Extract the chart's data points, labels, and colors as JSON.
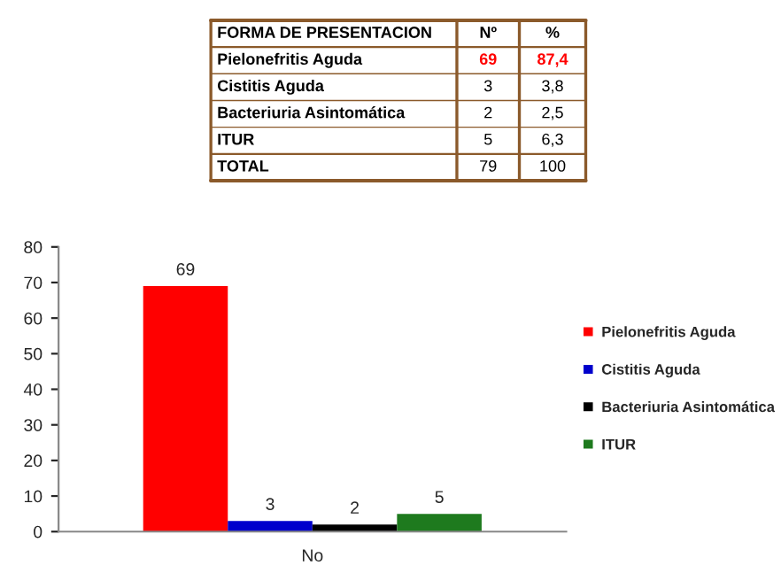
{
  "chart_data": {
    "type": "bar",
    "categories": [
      "No"
    ],
    "series": [
      {
        "name": "Pielonefritis Aguda",
        "color": "#ff0000",
        "values": [
          69
        ]
      },
      {
        "name": "Cistitis Aguda",
        "color": "#0000cc",
        "values": [
          3
        ]
      },
      {
        "name": "Bacteriuria Asintomática",
        "color": "#000000",
        "values": [
          2
        ]
      },
      {
        "name": "ITUR",
        "color": "#1e7a1e",
        "values": [
          5
        ]
      }
    ],
    "ylim": [
      0,
      80
    ],
    "yticks": [
      0,
      10,
      20,
      30,
      40,
      50,
      60,
      70,
      80
    ],
    "data_labels": true,
    "legend": "right",
    "grid": false,
    "annotations": [
      "FORMA DE PRESENTACION",
      "Nº",
      "%",
      "Pielonefritis Aguda",
      "69",
      "87,4",
      "Cistitis Aguda",
      "3",
      "3,8",
      "Bacteriuria Asintomática",
      "2",
      "2,5",
      "ITUR",
      "5",
      "6,3",
      "TOTAL",
      "79",
      "100"
    ]
  }
}
